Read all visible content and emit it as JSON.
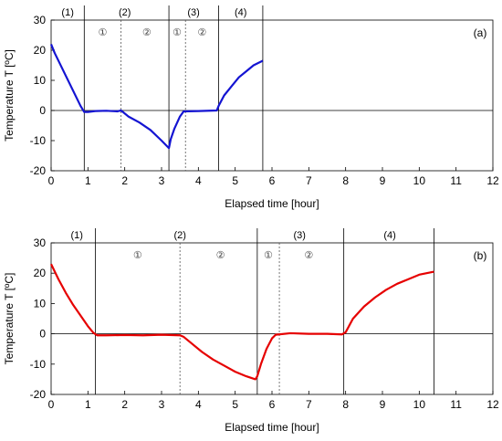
{
  "chart_data": [
    {
      "type": "line",
      "panel_label": "(a)",
      "xlabel": "Elapsed time [hour]",
      "ylabel": "Temperature T [ºC]",
      "xlim": [
        0,
        12
      ],
      "ylim": [
        -20,
        30
      ],
      "xticks": [
        0,
        1,
        2,
        3,
        4,
        5,
        6,
        7,
        8,
        9,
        10,
        11,
        12
      ],
      "yticks": [
        -20,
        -10,
        0,
        10,
        20,
        30
      ],
      "series": [
        {
          "color": "#1414d2",
          "points": [
            [
              0,
              22
            ],
            [
              0.1,
              19
            ],
            [
              0.2,
              16.5
            ],
            [
              0.3,
              14
            ],
            [
              0.4,
              11.5
            ],
            [
              0.5,
              9
            ],
            [
              0.6,
              6.5
            ],
            [
              0.7,
              4
            ],
            [
              0.8,
              1.5
            ],
            [
              0.9,
              -0.5
            ],
            [
              1.0,
              -0.5
            ],
            [
              1.2,
              -0.2
            ],
            [
              1.5,
              -0.1
            ],
            [
              1.8,
              -0.3
            ],
            [
              1.9,
              0
            ],
            [
              2.1,
              -2
            ],
            [
              2.4,
              -4
            ],
            [
              2.7,
              -6.5
            ],
            [
              3.0,
              -10
            ],
            [
              3.2,
              -12.5
            ],
            [
              3.25,
              -9.5
            ],
            [
              3.35,
              -6
            ],
            [
              3.5,
              -2
            ],
            [
              3.6,
              -0.3
            ],
            [
              4.0,
              -0.2
            ],
            [
              4.5,
              0
            ],
            [
              4.55,
              1.5
            ],
            [
              4.7,
              5
            ],
            [
              4.9,
              8
            ],
            [
              5.1,
              11
            ],
            [
              5.3,
              13
            ],
            [
              5.5,
              15
            ],
            [
              5.75,
              16.5
            ]
          ]
        }
      ],
      "phase_boundaries": [
        0.9,
        3.2,
        4.55,
        5.75
      ],
      "sub_boundaries": [
        1.9,
        3.65
      ],
      "phases": [
        {
          "label": "(1)",
          "x": 0.45
        },
        {
          "label": "(2)",
          "x": 2.0
        },
        {
          "label": "(3)",
          "x": 3.87
        },
        {
          "label": "(4)",
          "x": 5.15
        }
      ],
      "subphases": [
        {
          "label": "①",
          "x": 1.4
        },
        {
          "label": "②",
          "x": 2.6
        },
        {
          "label": "①",
          "x": 3.42
        },
        {
          "label": "②",
          "x": 4.1
        }
      ]
    },
    {
      "type": "line",
      "panel_label": "(b)",
      "xlabel": "Elapsed time [hour]",
      "ylabel": "Temperature T [ºC]",
      "xlim": [
        0,
        12
      ],
      "ylim": [
        -20,
        30
      ],
      "xticks": [
        0,
        1,
        2,
        3,
        4,
        5,
        6,
        7,
        8,
        9,
        10,
        11,
        12
      ],
      "yticks": [
        -20,
        -10,
        0,
        10,
        20,
        30
      ],
      "series": [
        {
          "color": "#e60000",
          "points": [
            [
              0,
              23
            ],
            [
              0.2,
              18
            ],
            [
              0.4,
              13.5
            ],
            [
              0.6,
              9.5
            ],
            [
              0.8,
              6
            ],
            [
              1.0,
              2.5
            ],
            [
              1.15,
              0.3
            ],
            [
              1.25,
              -0.5
            ],
            [
              1.5,
              -0.5
            ],
            [
              2.0,
              -0.4
            ],
            [
              2.5,
              -0.5
            ],
            [
              3.0,
              -0.3
            ],
            [
              3.5,
              -0.5
            ],
            [
              3.6,
              -1
            ],
            [
              3.8,
              -3
            ],
            [
              4.1,
              -6
            ],
            [
              4.4,
              -8.5
            ],
            [
              4.7,
              -10.5
            ],
            [
              5.0,
              -12.5
            ],
            [
              5.3,
              -14
            ],
            [
              5.55,
              -15
            ],
            [
              5.6,
              -14
            ],
            [
              5.7,
              -10
            ],
            [
              5.85,
              -5
            ],
            [
              6.0,
              -1.5
            ],
            [
              6.1,
              -0.3
            ],
            [
              6.5,
              0.2
            ],
            [
              7.0,
              0
            ],
            [
              7.5,
              0
            ],
            [
              7.9,
              -0.2
            ],
            [
              8.0,
              0.5
            ],
            [
              8.2,
              5
            ],
            [
              8.5,
              9
            ],
            [
              8.8,
              12
            ],
            [
              9.1,
              14.5
            ],
            [
              9.4,
              16.5
            ],
            [
              9.7,
              18
            ],
            [
              10.0,
              19.5
            ],
            [
              10.4,
              20.5
            ]
          ]
        }
      ],
      "phase_boundaries": [
        1.2,
        5.6,
        7.95,
        10.4
      ],
      "sub_boundaries": [
        3.5,
        6.2
      ],
      "phases": [
        {
          "label": "(1)",
          "x": 0.7
        },
        {
          "label": "(2)",
          "x": 3.5
        },
        {
          "label": "(3)",
          "x": 6.75
        },
        {
          "label": "(4)",
          "x": 9.2
        }
      ],
      "subphases": [
        {
          "label": "①",
          "x": 2.35
        },
        {
          "label": "②",
          "x": 4.6
        },
        {
          "label": "①",
          "x": 5.9
        },
        {
          "label": "②",
          "x": 7.0
        }
      ]
    }
  ]
}
